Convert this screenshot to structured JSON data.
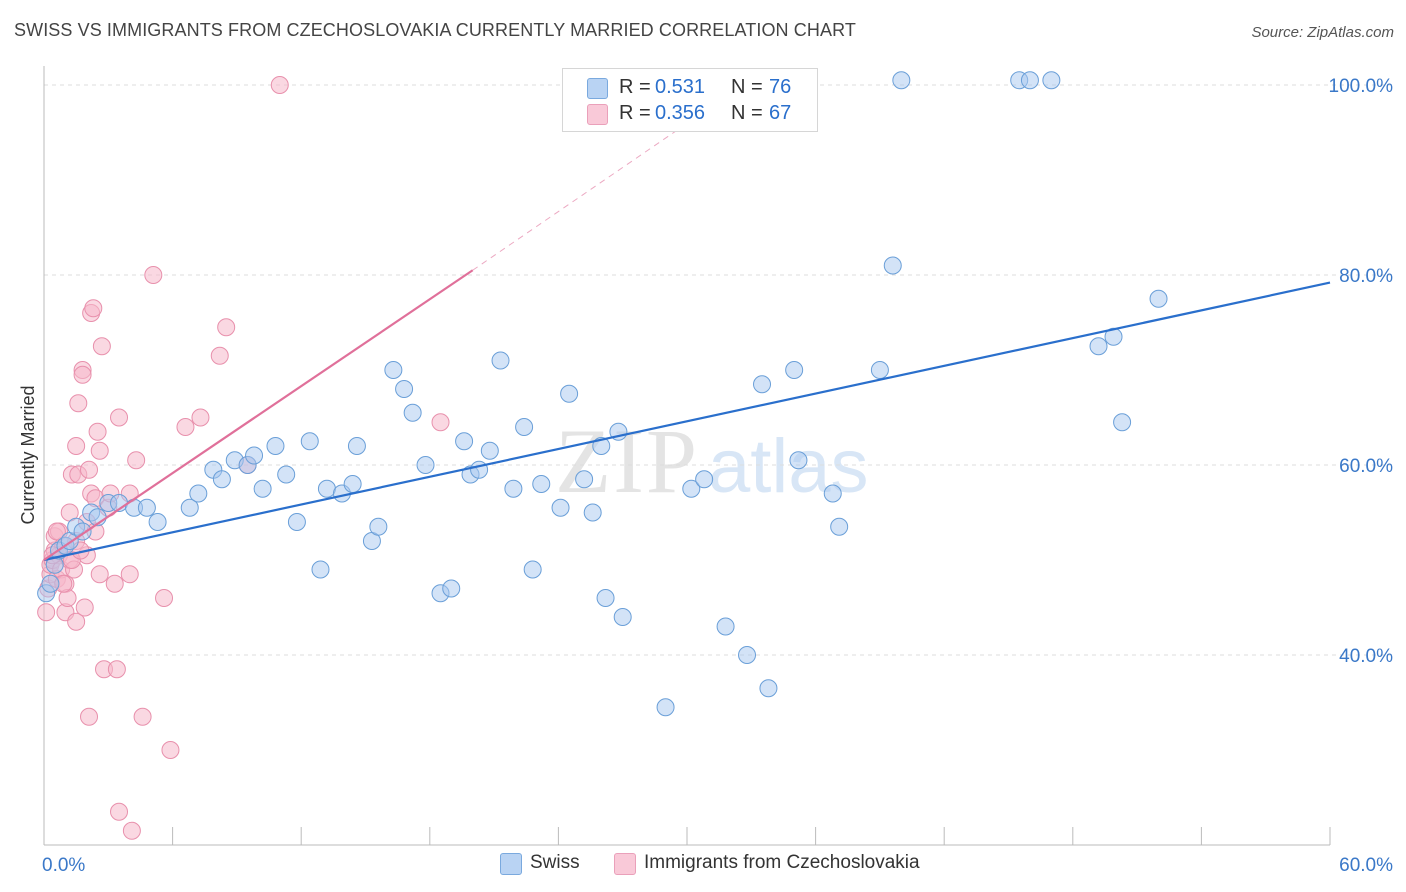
{
  "header": {
    "title": "SWISS VS IMMIGRANTS FROM CZECHOSLOVAKIA CURRENTLY MARRIED CORRELATION CHART",
    "source": "Source: ZipAtlas.com"
  },
  "watermark": {
    "zip": "ZIP",
    "atlas": "atlas"
  },
  "legend": {
    "swiss": {
      "r_label": "R =",
      "r_value": "0.531",
      "n_label": "N =",
      "n_value": "76"
    },
    "czech": {
      "r_label": "R =",
      "r_value": "0.356",
      "n_label": "N =",
      "n_value": "67"
    }
  },
  "colors": {
    "swiss_fill": "#a8c8f0",
    "swiss_stroke": "#6a9fd8",
    "swiss_line": "#2a6fcc",
    "czech_fill": "#f6b8cb",
    "czech_stroke": "#e890ac",
    "czech_line": "#e0709a",
    "axis_text": "#3a78c8"
  },
  "chart_data": {
    "type": "scatter",
    "title": "SWISS VS IMMIGRANTS FROM CZECHOSLOVAKIA CURRENTLY MARRIED CORRELATION CHART",
    "xlabel": "",
    "ylabel": "Currently Married",
    "xlim": [
      0,
      60
    ],
    "ylim": [
      20,
      102
    ],
    "x_tick_labels": [
      "0.0%",
      "60.0%"
    ],
    "y_ticks": [
      40,
      60,
      80,
      100
    ],
    "y_tick_labels": [
      "40.0%",
      "60.0%",
      "80.0%",
      "100.0%"
    ],
    "grid": true,
    "legend_position": "top-center",
    "series": [
      {
        "name": "Swiss",
        "trend": {
          "x0": 0,
          "y0": 50.0,
          "x1": 60,
          "y1": 79.2
        },
        "points": [
          [
            0.1,
            46.5
          ],
          [
            0.3,
            47.5
          ],
          [
            0.5,
            49.5
          ],
          [
            0.7,
            51.0
          ],
          [
            1.0,
            51.5
          ],
          [
            1.2,
            52.0
          ],
          [
            1.5,
            53.5
          ],
          [
            1.8,
            53.0
          ],
          [
            2.2,
            55.0
          ],
          [
            2.5,
            54.5
          ],
          [
            3.0,
            56.0
          ],
          [
            3.5,
            56.0
          ],
          [
            4.2,
            55.5
          ],
          [
            4.8,
            55.5
          ],
          [
            5.3,
            54.0
          ],
          [
            6.8,
            55.5
          ],
          [
            7.2,
            57.0
          ],
          [
            7.9,
            59.5
          ],
          [
            8.3,
            58.5
          ],
          [
            8.9,
            60.5
          ],
          [
            9.5,
            60.0
          ],
          [
            9.8,
            61.0
          ],
          [
            10.2,
            57.5
          ],
          [
            10.8,
            62.0
          ],
          [
            11.3,
            59.0
          ],
          [
            11.8,
            54.0
          ],
          [
            12.4,
            62.5
          ],
          [
            12.9,
            49.0
          ],
          [
            13.2,
            57.5
          ],
          [
            13.9,
            57.0
          ],
          [
            14.4,
            58.0
          ],
          [
            14.6,
            62.0
          ],
          [
            15.3,
            52.0
          ],
          [
            15.6,
            53.5
          ],
          [
            16.3,
            70.0
          ],
          [
            16.8,
            68.0
          ],
          [
            17.2,
            65.5
          ],
          [
            17.8,
            60.0
          ],
          [
            18.5,
            46.5
          ],
          [
            19.0,
            47.0
          ],
          [
            19.6,
            62.5
          ],
          [
            19.9,
            59.0
          ],
          [
            20.3,
            59.5
          ],
          [
            20.8,
            61.5
          ],
          [
            21.3,
            71.0
          ],
          [
            21.9,
            57.5
          ],
          [
            22.4,
            64.0
          ],
          [
            22.8,
            49.0
          ],
          [
            23.2,
            58.0
          ],
          [
            24.1,
            55.5
          ],
          [
            24.5,
            67.5
          ],
          [
            25.2,
            58.5
          ],
          [
            25.6,
            55.0
          ],
          [
            26.0,
            62.0
          ],
          [
            26.8,
            63.5
          ],
          [
            26.2,
            46.0
          ],
          [
            27.0,
            44.0
          ],
          [
            29.0,
            34.5
          ],
          [
            30.2,
            57.5
          ],
          [
            30.8,
            58.5
          ],
          [
            31.8,
            43.0
          ],
          [
            32.8,
            40.0
          ],
          [
            33.5,
            68.5
          ],
          [
            33.8,
            36.5
          ],
          [
            35.0,
            70.0
          ],
          [
            35.2,
            60.5
          ],
          [
            36.8,
            57.0
          ],
          [
            37.1,
            53.5
          ],
          [
            39.0,
            70.0
          ],
          [
            39.6,
            81.0
          ],
          [
            40.0,
            100.5
          ],
          [
            45.5,
            100.5
          ],
          [
            46.0,
            100.5
          ],
          [
            47.0,
            100.5
          ],
          [
            49.2,
            72.5
          ],
          [
            49.9,
            73.5
          ],
          [
            50.3,
            64.5
          ],
          [
            52.0,
            77.5
          ]
        ]
      },
      {
        "name": "Immigrants from Czechoslovakia",
        "trend": {
          "x0": 0,
          "y0": 50.0,
          "x1": 20.0,
          "y1": 80.5,
          "dash_to": {
            "x": 31.0,
            "y": 97.5
          }
        },
        "points": [
          [
            0.1,
            44.5
          ],
          [
            0.2,
            47.0
          ],
          [
            0.3,
            48.5
          ],
          [
            0.3,
            49.5
          ],
          [
            0.4,
            50.0
          ],
          [
            0.5,
            51.0
          ],
          [
            0.5,
            52.5
          ],
          [
            0.6,
            48.0
          ],
          [
            0.7,
            53.0
          ],
          [
            0.7,
            50.5
          ],
          [
            0.8,
            49.0
          ],
          [
            0.9,
            51.5
          ],
          [
            1.0,
            47.5
          ],
          [
            1.0,
            44.5
          ],
          [
            1.1,
            46.0
          ],
          [
            1.2,
            50.0
          ],
          [
            1.2,
            55.0
          ],
          [
            1.3,
            59.0
          ],
          [
            1.4,
            49.0
          ],
          [
            1.5,
            52.0
          ],
          [
            1.5,
            43.5
          ],
          [
            1.5,
            62.0
          ],
          [
            1.6,
            59.0
          ],
          [
            1.6,
            66.5
          ],
          [
            1.8,
            70.0
          ],
          [
            1.8,
            69.5
          ],
          [
            1.9,
            45.0
          ],
          [
            2.0,
            50.5
          ],
          [
            2.0,
            54.0
          ],
          [
            2.1,
            33.5
          ],
          [
            2.1,
            59.5
          ],
          [
            2.2,
            57.0
          ],
          [
            2.2,
            76.0
          ],
          [
            2.3,
            76.5
          ],
          [
            2.4,
            56.5
          ],
          [
            2.5,
            63.5
          ],
          [
            2.6,
            48.5
          ],
          [
            2.6,
            61.5
          ],
          [
            2.7,
            72.5
          ],
          [
            2.8,
            38.5
          ],
          [
            3.0,
            55.5
          ],
          [
            3.1,
            57.0
          ],
          [
            3.3,
            47.5
          ],
          [
            3.4,
            38.5
          ],
          [
            3.5,
            65.0
          ],
          [
            3.5,
            23.5
          ],
          [
            4.0,
            57.0
          ],
          [
            4.0,
            48.5
          ],
          [
            4.1,
            21.5
          ],
          [
            4.3,
            60.5
          ],
          [
            4.6,
            33.5
          ],
          [
            5.1,
            80.0
          ],
          [
            5.6,
            46.0
          ],
          [
            5.9,
            30.0
          ],
          [
            6.6,
            64.0
          ],
          [
            7.3,
            65.0
          ],
          [
            8.2,
            71.5
          ],
          [
            8.5,
            74.5
          ],
          [
            9.5,
            60.0
          ],
          [
            11.0,
            100.0
          ],
          [
            18.5,
            64.5
          ],
          [
            0.6,
            53.0
          ],
          [
            1.3,
            50.0
          ],
          [
            0.9,
            47.5
          ],
          [
            2.4,
            53.0
          ],
          [
            0.4,
            50.5
          ],
          [
            1.7,
            51.0
          ]
        ]
      }
    ]
  }
}
